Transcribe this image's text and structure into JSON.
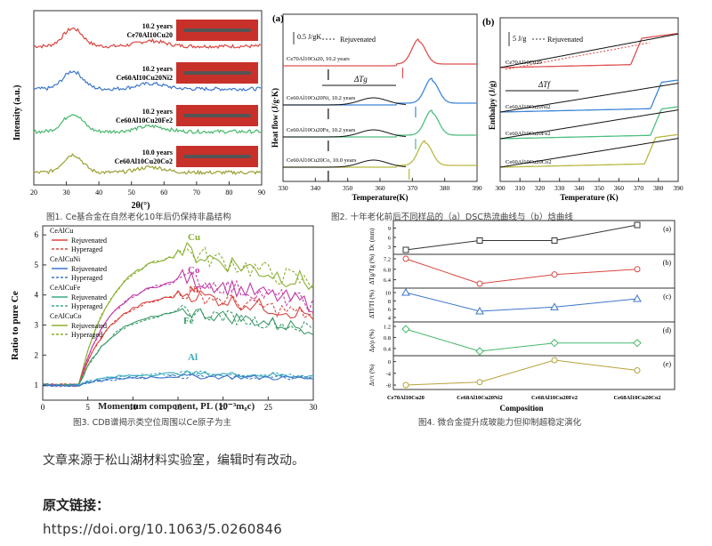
{
  "fig1": {
    "ylabel": "Intensity (a.u.)",
    "xlabel": "2θ(°)",
    "xticks": [
      "20",
      "30",
      "40",
      "50",
      "60",
      "70",
      "80",
      "90"
    ],
    "samples": [
      {
        "years": "10.2 years",
        "alloy": "Ce70Al10Cu20",
        "color": "#d9463f"
      },
      {
        "years": "10.2 years",
        "alloy": "Ce60Al10Cu20Ni2",
        "color": "#3d76c9"
      },
      {
        "years": "10.2 years",
        "alloy": "Ce60Al10Cu20Fe2",
        "color": "#47b86b"
      },
      {
        "years": "10.0 years",
        "alloy": "Ce60Al10Cu20Co2",
        "color": "#9aa032"
      }
    ],
    "caption": "图1. Ce基合金在自然老化10年后仍保持非晶结构"
  },
  "fig2a": {
    "panel": "(a)",
    "ylabel": "Heat flow (J/g·K)",
    "xlabel": "Temperature(K)",
    "xticks": [
      "330",
      "340",
      "350",
      "360",
      "370",
      "380",
      "390"
    ],
    "scale": "0.5 J/gK",
    "legend": "Rejuvenated",
    "delta": "ΔTg",
    "curves": [
      "Ce70Al10Cu20, 10.2 years",
      "Ce60Al10Cu20Ni, 10.2 years",
      "Ce60Al10Cu20Fe, 10.2 years",
      "Ce60Al10Cu20Co, 10.0 years"
    ]
  },
  "fig2b": {
    "panel": "(b)",
    "ylabel": "Enthalpy (J/g)",
    "xlabel": "Temperature (K)",
    "xticks": [
      "300",
      "310",
      "320",
      "330",
      "340",
      "350",
      "360",
      "370",
      "380",
      "390"
    ],
    "scale": "5 J/g",
    "legend": "Rejuvenated",
    "delta": "ΔTf",
    "curves": [
      "Ce70Al10Cu20",
      "Ce60Al10Cu20Ni2",
      "Ce60Al10Cu20Fe2",
      "Ce60Al10Cu20Co2"
    ]
  },
  "fig2_caption": "图2. 十年老化前后不同样品的（a）DSC热流曲线与（b）焓曲线",
  "fig3": {
    "ylabel": "Ratio to pure Ce",
    "xlabel": "Momentum component, PL (10⁻³m₀c)",
    "xticks": [
      "0",
      "5",
      "10",
      "15",
      "20",
      "25",
      "30"
    ],
    "yticks": [
      "1",
      "2",
      "3",
      "4",
      "5",
      "6"
    ],
    "labels": [
      "Cu",
      "Co",
      "Ni",
      "Fe",
      "Al"
    ],
    "legend": [
      {
        "alloy": "CeAlCu",
        "a": "Rejuvenated",
        "b": "Hyperaged",
        "color": "#d9463f"
      },
      {
        "alloy": "CeAlCuNi",
        "a": "Rejuvenated",
        "b": "Hyperaged",
        "color": "#3d76c9"
      },
      {
        "alloy": "CeAlCuFe",
        "a": "Rejuvenated",
        "b": "Hyperaged",
        "color": "#3aaa8a"
      },
      {
        "alloy": "CeAlCuCo",
        "a": "Rejuvenated",
        "b": "Hyperaged",
        "color": "#8ab030"
      }
    ],
    "caption": "图3. CDB谱揭示类空位周围以Ce原子为主"
  },
  "fig4": {
    "panels": [
      {
        "tag": "(a)",
        "ylabel": "Dc (mm)",
        "ticks": [
          "3",
          "6",
          "9"
        ],
        "values": [
          2,
          5,
          5,
          10
        ],
        "color": "#333333"
      },
      {
        "tag": "(b)",
        "ylabel": "ΔTg/Tg (%)",
        "ticks": [
          "6.4",
          "6.8",
          "7.2"
        ],
        "values": [
          7.2,
          6.25,
          6.6,
          6.8
        ],
        "color": "#d9463f"
      },
      {
        "tag": "(c)",
        "ylabel": "ΔTf/Tf (%)",
        "ticks": [
          "4",
          "6",
          "8",
          "10"
        ],
        "values": [
          10,
          5.5,
          6.5,
          8.5
        ],
        "color": "#3d76c9"
      },
      {
        "tag": "(d)",
        "ylabel": "Δρ/ρ (%)",
        "ticks": [
          "0.4",
          "0.8",
          "1.2"
        ],
        "values": [
          1.1,
          0.3,
          0.6,
          0.6
        ],
        "color": "#47b86b"
      },
      {
        "tag": "(e)",
        "ylabel": "Δτ/τ (%)",
        "ticks": [
          "-8",
          "-4",
          "0"
        ],
        "values": [
          -8,
          -7,
          0.5,
          -3
        ],
        "color": "#b8a23a"
      }
    ],
    "categories": [
      "Ce70Al10Cu20",
      "Ce68Al10Cu20Ni2",
      "Ce68Al10Cu20Fe2",
      "Ce68Al10Cu20Co2"
    ],
    "xlabel": "Composition",
    "caption": "图4. 微合金提升成玻能力但抑制超稳定演化"
  },
  "source_note": "文章来源于松山湖材料实验室，编辑时有改动。",
  "link_title": "原文链接：",
  "link_url": "https://doi.org/10.1063/5.0260846"
}
